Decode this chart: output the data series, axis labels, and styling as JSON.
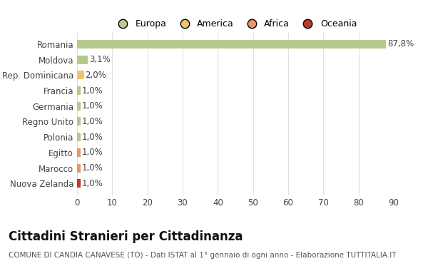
{
  "countries": [
    "Romania",
    "Moldova",
    "Rep. Dominicana",
    "Francia",
    "Germania",
    "Regno Unito",
    "Polonia",
    "Egitto",
    "Marocco",
    "Nuova Zelanda"
  ],
  "values": [
    87.8,
    3.1,
    2.0,
    1.0,
    1.0,
    1.0,
    1.0,
    1.0,
    1.0,
    1.0
  ],
  "labels": [
    "87,8%",
    "3,1%",
    "2,0%",
    "1,0%",
    "1,0%",
    "1,0%",
    "1,0%",
    "1,0%",
    "1,0%",
    "1,0%"
  ],
  "colors": [
    "#b5c98e",
    "#b5c98e",
    "#e8c46a",
    "#b5c98e",
    "#b5c98e",
    "#b5c98e",
    "#b5c98e",
    "#e8956a",
    "#e8956a",
    "#c0392b"
  ],
  "legend_labels": [
    "Europa",
    "America",
    "Africa",
    "Oceania"
  ],
  "legend_colors": [
    "#b5c98e",
    "#e8c46a",
    "#e8956a",
    "#c0392b"
  ],
  "title": "Cittadini Stranieri per Cittadinanza",
  "subtitle": "COMUNE DI CANDIA CANAVESE (TO) - Dati ISTAT al 1° gennaio di ogni anno - Elaborazione TUTTITALIA.IT",
  "xlim": [
    0,
    90
  ],
  "xticks": [
    0,
    10,
    20,
    30,
    40,
    50,
    60,
    70,
    80,
    90
  ],
  "background_color": "#ffffff",
  "grid_color": "#e0e0e0",
  "label_fontsize": 8.5,
  "tick_fontsize": 8.5,
  "legend_fontsize": 9,
  "title_fontsize": 12,
  "subtitle_fontsize": 7.5
}
